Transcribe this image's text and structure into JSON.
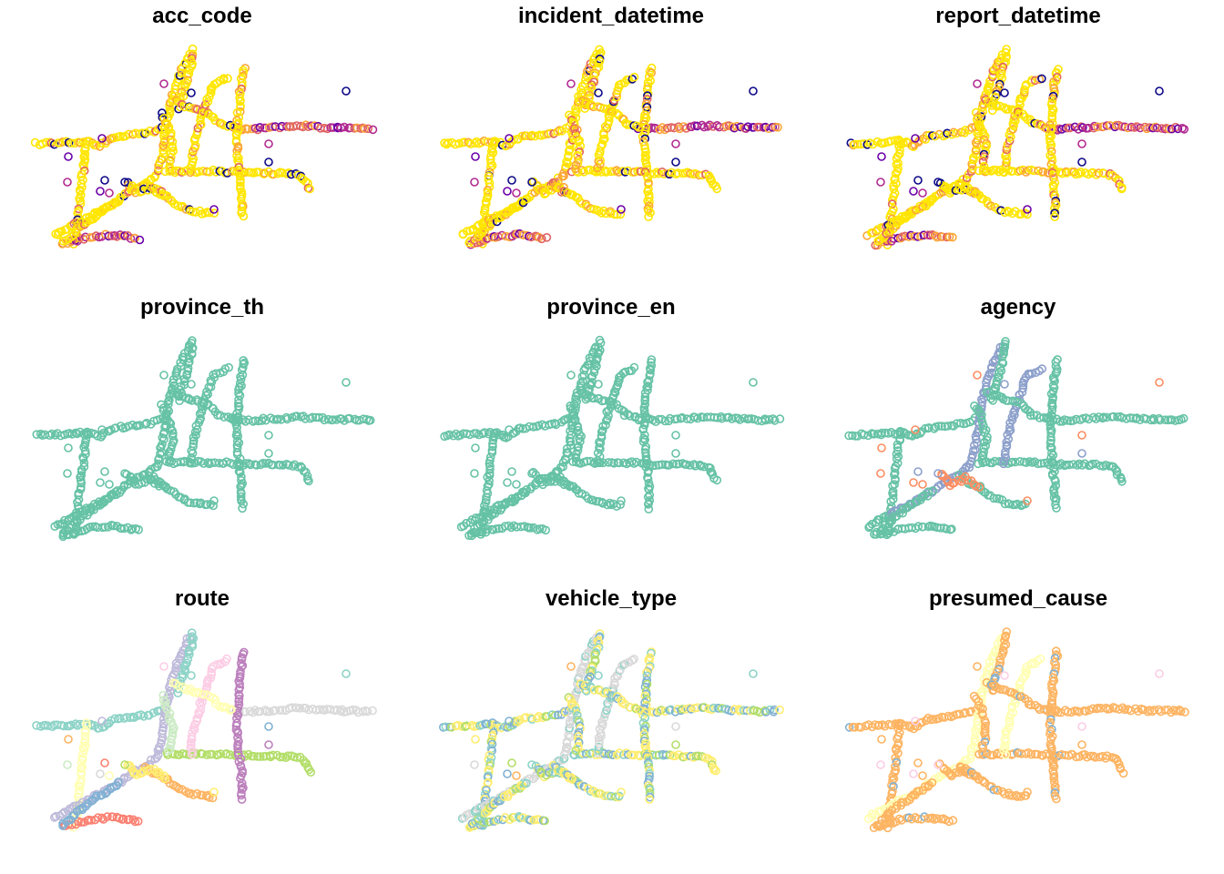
{
  "chart_data": [
    {
      "type": "scatter",
      "title": "acc_code",
      "palette": [
        "#0D0887",
        "#6A00A8",
        "#B12A90",
        "#E16462",
        "#FCA636",
        "#F0F921",
        "#FFE600"
      ],
      "dominant_color": "#FFE600"
    },
    {
      "type": "scatter",
      "title": "incident_datetime",
      "palette": [
        "#0D0887",
        "#6A00A8",
        "#B12A90",
        "#E16462",
        "#FCA636",
        "#F0F921",
        "#FFE600"
      ],
      "dominant_color": "#FFE600"
    },
    {
      "type": "scatter",
      "title": "report_datetime",
      "palette": [
        "#0D0887",
        "#6A00A8",
        "#B12A90",
        "#E16462",
        "#FCA636",
        "#F0F921",
        "#FFE600"
      ],
      "dominant_color": "#FFE600"
    },
    {
      "type": "scatter",
      "title": "province_th",
      "palette": [
        "#66C2A5"
      ],
      "dominant_color": "#66C2A5"
    },
    {
      "type": "scatter",
      "title": "province_en",
      "palette": [
        "#66C2A5"
      ],
      "dominant_color": "#66C2A5"
    },
    {
      "type": "scatter",
      "title": "agency",
      "palette": [
        "#66C2A5",
        "#FC8D62",
        "#8DA0CB"
      ],
      "dominant_color": "#66C2A5"
    },
    {
      "type": "scatter",
      "title": "route",
      "palette": [
        "#8DD3C7",
        "#FFFFB3",
        "#BEBADA",
        "#FB8072",
        "#80B1D3",
        "#FDB462",
        "#B3DE69",
        "#FCCDE5",
        "#D9D9D9",
        "#BC80BD",
        "#CCEBC5",
        "#FFED6F"
      ],
      "dominant_color": "#80B1D3"
    },
    {
      "type": "scatter",
      "title": "vehicle_type",
      "palette": [
        "#8DD3C7",
        "#FFED6F",
        "#D9D9D9",
        "#B3DE69",
        "#80B1D3",
        "#FDB462"
      ],
      "dominant_color": "#D9D9D9"
    },
    {
      "type": "scatter",
      "title": "presumed_cause",
      "palette": [
        "#FDB462",
        "#FFFFB3",
        "#80B1D3",
        "#FCCDE5"
      ],
      "dominant_color": "#FDB462"
    }
  ]
}
